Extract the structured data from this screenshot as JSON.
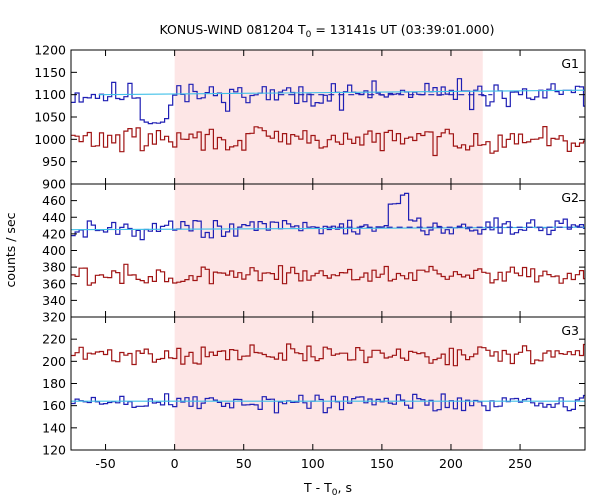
{
  "header": {
    "title_prefix": "KONUS-WIND 081204 T",
    "title_sub": "0",
    "title_suffix": " = 13141s UT (03:39:01.000)"
  },
  "axes": {
    "ylabel": "counts / sec",
    "xlabel_prefix": "T - T",
    "xlabel_sub": "0",
    "xlabel_suffix": ", s"
  },
  "colors": {
    "blue_series": "#1f1fb4",
    "red_series": "#a01414",
    "blue_background_fit": "#40c0e8",
    "red_background_fit": "#a01414",
    "highlight_band": "#fde6e6"
  },
  "chart_data": {
    "type": "line",
    "style": "step histogram",
    "xlim": [
      -75,
      297
    ],
    "x_ticks": [
      -50,
      0,
      50,
      100,
      150,
      200,
      250
    ],
    "x_tick_labels": [
      "-50",
      "0",
      "50",
      "100",
      "150",
      "200",
      "250"
    ],
    "highlight_interval": [
      0,
      223
    ],
    "grid": false,
    "panels": [
      {
        "label": "G1",
        "ylim": [
          900,
          1200
        ],
        "y_ticks": [
          900,
          950,
          1000,
          1050,
          1100,
          1150,
          1200
        ],
        "y_tick_labels": [
          "900",
          "950",
          "1000",
          "1050",
          "1100",
          "1150",
          "1200"
        ],
        "series": [
          {
            "color": "blue",
            "mean": 1100,
            "noise": 22,
            "bin": 2.944,
            "x_start": -75,
            "seed": 11,
            "features": [
              {
                "x_from": -25,
                "x_to": -5,
                "value": 1040
              }
            ]
          },
          {
            "color": "red",
            "mean": 1000,
            "noise": 22,
            "bin": 2.944,
            "x_start": -75,
            "seed": 29,
            "features": []
          }
        ],
        "fits": [
          {
            "color": "cyan",
            "dash": false,
            "x_range": [
              -55,
              297
            ],
            "y_from": 1100,
            "y_to": 1110
          },
          {
            "color": "blue",
            "dash": true,
            "x_range": [
              75,
              230
            ],
            "y_from": 1100,
            "y_to": 1100
          }
        ]
      },
      {
        "label": "G2",
        "ylim": [
          320,
          480
        ],
        "y_ticks": [
          320,
          340,
          360,
          380,
          400,
          420,
          440,
          460,
          480
        ],
        "y_tick_labels": [
          "320",
          "340",
          "360",
          "380",
          "400",
          "420",
          "440",
          "460",
          "480"
        ],
        "series": [
          {
            "color": "blue",
            "mean": 427,
            "noise": 9,
            "bin": 2.944,
            "x_start": -75,
            "seed": 43,
            "features": [
              {
                "x_from": 153,
                "x_to": 162,
                "value": 455
              },
              {
                "x_from": 162,
                "x_to": 168,
                "value": 468
              },
              {
                "x_from": 168,
                "x_to": 176,
                "value": 438
              }
            ]
          },
          {
            "color": "red",
            "mean": 370,
            "noise": 9,
            "bin": 2.944,
            "x_start": -75,
            "seed": 57,
            "features": []
          }
        ],
        "fits": [
          {
            "color": "cyan",
            "dash": false,
            "x_range": [
              -75,
              297
            ],
            "y_from": 425,
            "y_to": 428
          },
          {
            "color": "blue",
            "dash": true,
            "x_range": [
              110,
              297
            ],
            "y_from": 428,
            "y_to": 428
          }
        ]
      },
      {
        "label": "G3",
        "ylim": [
          120,
          240
        ],
        "y_ticks": [
          120,
          140,
          160,
          180,
          200,
          220,
          240
        ],
        "y_tick_labels": [
          "120",
          "140",
          "160",
          "180",
          "200",
          "220",
          "240"
        ],
        "series": [
          {
            "color": "red",
            "mean": 206,
            "noise": 7,
            "bin": 2.944,
            "x_start": -75,
            "seed": 71,
            "features": []
          },
          {
            "color": "blue",
            "mean": 163,
            "noise": 7,
            "bin": 2.944,
            "x_start": -75,
            "seed": 89,
            "features": []
          }
        ],
        "fits": [
          {
            "color": "cyan",
            "dash": false,
            "x_range": [
              -75,
              297
            ],
            "y_from": 164,
            "y_to": 164
          }
        ]
      }
    ]
  }
}
